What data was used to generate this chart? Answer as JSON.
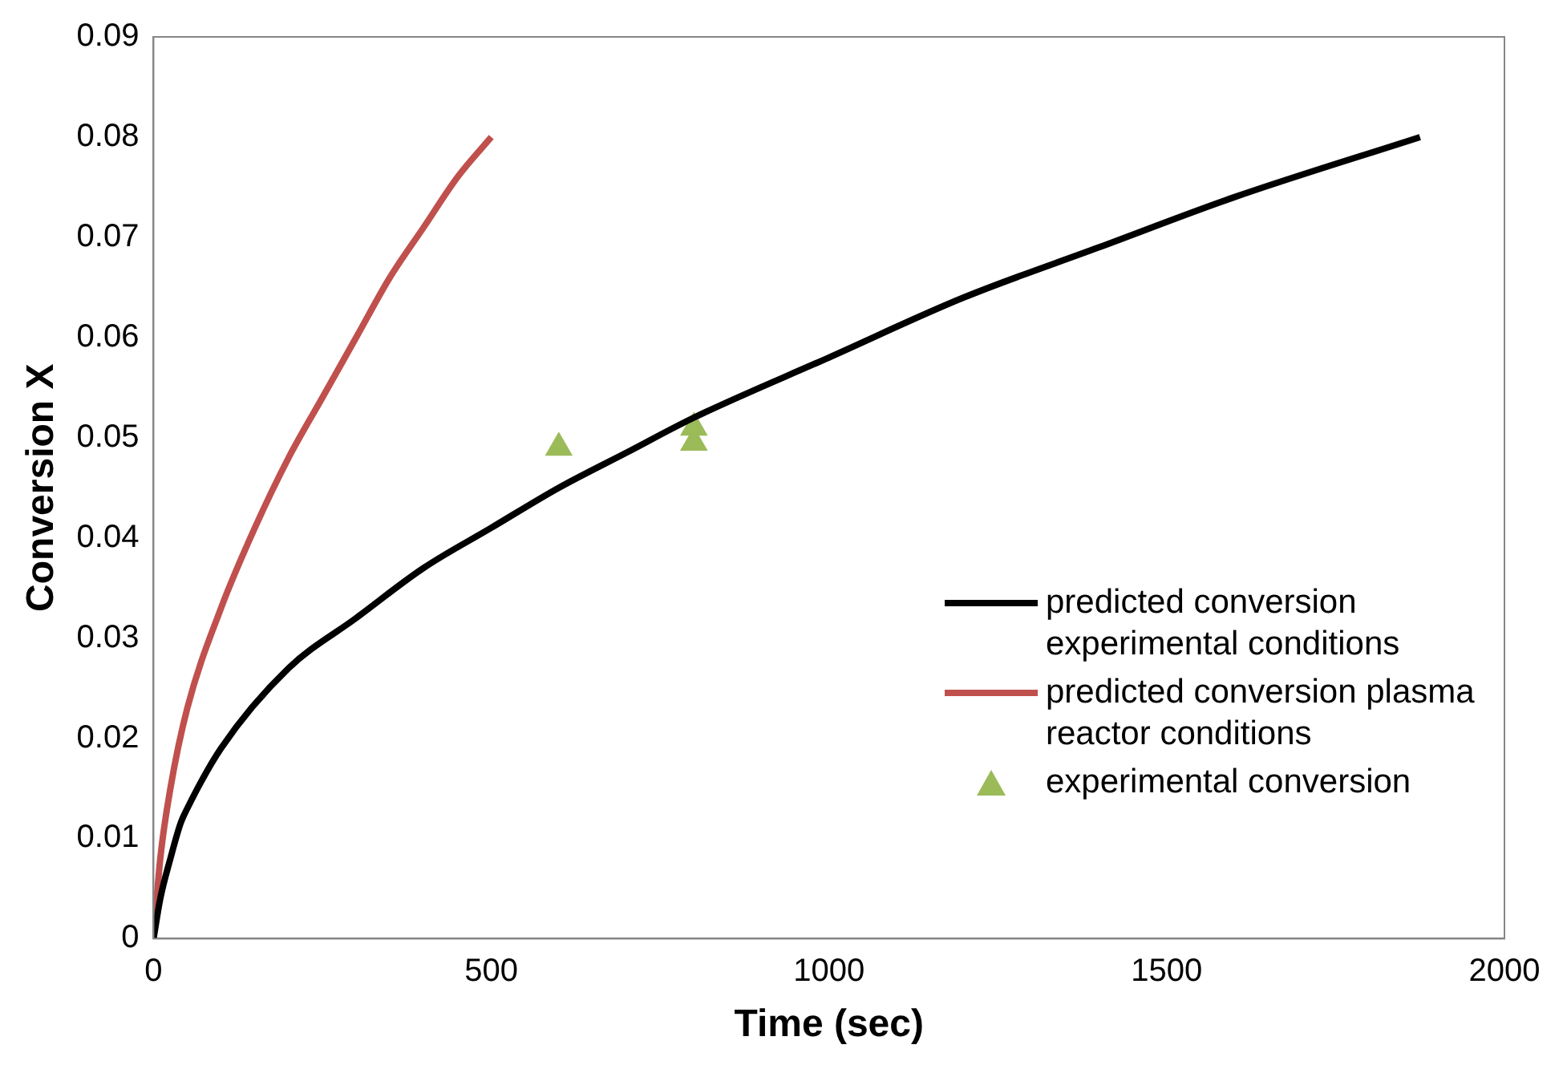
{
  "chart_data": {
    "type": "line",
    "xlabel": "Time (sec)",
    "ylabel": "Conversion X",
    "xlim": [
      0,
      2000
    ],
    "xticks": [
      0,
      500,
      1000,
      1500,
      2000
    ],
    "ylim": [
      0,
      0.09
    ],
    "yticks": [
      0,
      0.01,
      0.02,
      0.03,
      0.04,
      0.05,
      0.06,
      0.07,
      0.08,
      0.09
    ],
    "grid": false,
    "legend": "right",
    "marker": "none",
    "line_style": "solid",
    "series": [
      {
        "name": "predicted conversion experimental conditions",
        "color": "#000000",
        "x": [
          0,
          10,
          25,
          40,
          50,
          100,
          200,
          300,
          400,
          500,
          600,
          700,
          800,
          1000,
          1200,
          1400,
          1600,
          1875
        ],
        "values": [
          0,
          0.004,
          0.008,
          0.0115,
          0.013,
          0.019,
          0.027,
          0.032,
          0.037,
          0.041,
          0.045,
          0.0485,
          0.052,
          0.058,
          0.064,
          0.069,
          0.074,
          0.08
        ]
      },
      {
        "name": "predicted conversion plasma reactor conditions",
        "color": "#c0504d",
        "x": [
          0,
          10,
          25,
          50,
          100,
          150,
          200,
          250,
          300,
          350,
          400,
          450,
          500
        ],
        "values": [
          0,
          0.008,
          0.015,
          0.023,
          0.033,
          0.041,
          0.048,
          0.054,
          0.06,
          0.066,
          0.071,
          0.076,
          0.08
        ]
      },
      {
        "name": "experimental conversion",
        "type": "scatter",
        "marker": "triangle",
        "color": "#9bbb59",
        "x": [
          600,
          800,
          800
        ],
        "values": [
          0.049,
          0.051,
          0.0495
        ]
      }
    ]
  }
}
